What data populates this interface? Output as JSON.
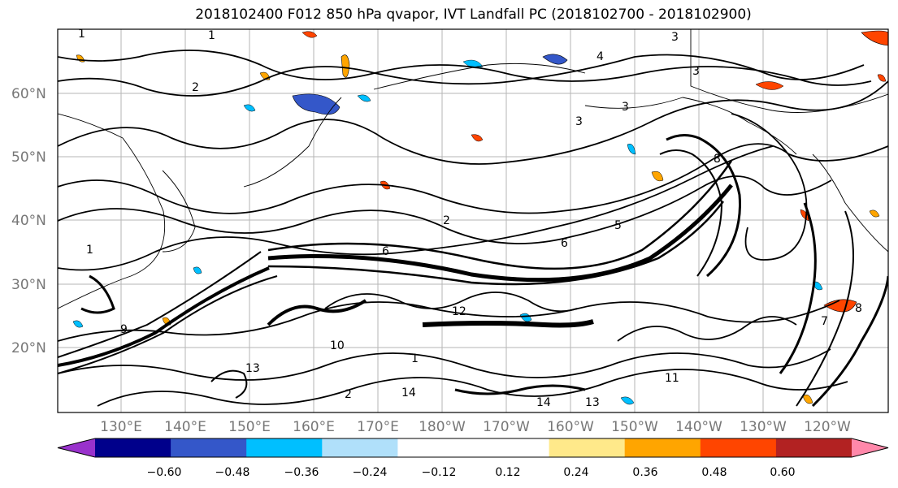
{
  "title": "2018102400 F012 850 hPa qvapor, IVT Landfall PC (2018102700 - 2018102900)",
  "lat_labels": [
    "60°N",
    "50°N",
    "40°N",
    "30°N",
    "20°N"
  ],
  "lon_labels": [
    "130°E",
    "140°E",
    "150°E",
    "160°E",
    "170°E",
    "180°W",
    "170°W",
    "160°W",
    "150°W",
    "140°W",
    "130°W",
    "120°W"
  ],
  "colorbar": {
    "colors": [
      "#9932cc",
      "#00008b",
      "#3457c9",
      "#00bfff",
      "#b0e0fa",
      "#ffffff",
      "#ffffff",
      "#ffe98a",
      "#ffa500",
      "#ff4500",
      "#b22222",
      "#ff88aa"
    ],
    "tick_labels": [
      "−0.60",
      "−0.48",
      "−0.36",
      "−0.24",
      "−0.12",
      "0.12",
      "0.24",
      "0.36",
      "0.48",
      "0.60"
    ]
  },
  "contour_labels": [
    "1",
    "1",
    "2",
    "2",
    "3",
    "3",
    "3",
    "3",
    "4",
    "5",
    "6",
    "6",
    "8",
    "9",
    "10",
    "11",
    "13",
    "14",
    "14",
    "13",
    "12",
    "7",
    "8",
    "1",
    "1",
    "2"
  ]
}
